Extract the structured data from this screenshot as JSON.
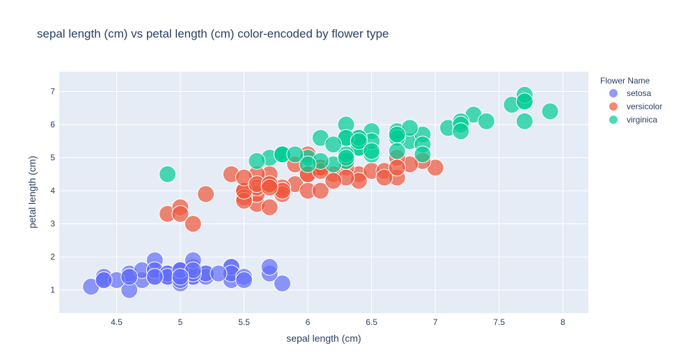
{
  "chart_data": {
    "type": "scatter",
    "title": "sepal length (cm) vs petal length (cm) color-encoded by flower type",
    "xlabel": "sepal length (cm)",
    "ylabel": "petal length (cm)",
    "xlim": [
      4.05,
      8.2
    ],
    "ylim": [
      0.3,
      7.6
    ],
    "xticks": [
      4.5,
      5,
      5.5,
      6,
      6.5,
      7,
      7.5,
      8
    ],
    "xtick_labels": [
      "4.5",
      "5",
      "5.5",
      "6",
      "6.5",
      "7",
      "7.5",
      "8"
    ],
    "yticks": [
      1,
      2,
      3,
      4,
      5,
      6,
      7
    ],
    "ytick_labels": [
      "1",
      "2",
      "3",
      "4",
      "5",
      "6",
      "7"
    ],
    "grid": true,
    "legend": {
      "title": "Flower Name",
      "placement": "right"
    },
    "series": [
      {
        "name": "setosa",
        "color": "#636efa",
        "x": [
          5.1,
          4.9,
          4.7,
          4.6,
          5.0,
          5.4,
          4.6,
          5.0,
          4.4,
          4.9,
          5.4,
          4.8,
          4.8,
          4.3,
          5.8,
          5.7,
          5.4,
          5.1,
          5.7,
          5.1,
          5.4,
          5.1,
          4.6,
          5.1,
          4.8,
          5.0,
          5.0,
          5.2,
          5.2,
          4.7,
          4.8,
          5.4,
          5.2,
          5.5,
          4.9,
          5.0,
          5.5,
          4.9,
          4.4,
          5.1,
          5.0,
          4.5,
          4.4,
          5.0,
          5.1,
          4.8,
          5.1,
          4.6,
          5.3,
          5.0
        ],
        "y": [
          1.4,
          1.4,
          1.3,
          1.5,
          1.4,
          1.7,
          1.4,
          1.5,
          1.4,
          1.5,
          1.5,
          1.6,
          1.4,
          1.1,
          1.2,
          1.5,
          1.3,
          1.4,
          1.7,
          1.5,
          1.7,
          1.5,
          1.0,
          1.7,
          1.9,
          1.6,
          1.6,
          1.5,
          1.4,
          1.6,
          1.6,
          1.5,
          1.5,
          1.4,
          1.5,
          1.2,
          1.3,
          1.4,
          1.3,
          1.5,
          1.3,
          1.3,
          1.3,
          1.6,
          1.9,
          1.4,
          1.6,
          1.4,
          1.5,
          1.4
        ]
      },
      {
        "name": "versicolor",
        "color": "#ef553b",
        "x": [
          7.0,
          6.4,
          6.9,
          5.5,
          6.5,
          5.7,
          6.3,
          4.9,
          6.6,
          5.2,
          5.0,
          5.9,
          6.0,
          6.1,
          5.6,
          6.7,
          5.6,
          5.8,
          6.2,
          5.6,
          5.9,
          6.1,
          6.3,
          6.1,
          6.4,
          6.6,
          6.8,
          6.7,
          6.0,
          5.7,
          5.5,
          5.5,
          5.8,
          6.0,
          5.4,
          6.0,
          6.7,
          6.3,
          5.6,
          5.5,
          5.5,
          6.1,
          5.8,
          5.0,
          5.6,
          5.7,
          5.7,
          6.2,
          5.1,
          5.7
        ],
        "y": [
          4.7,
          4.5,
          4.9,
          4.0,
          4.6,
          4.5,
          4.7,
          3.3,
          4.6,
          3.9,
          3.5,
          4.2,
          4.0,
          4.7,
          3.6,
          4.4,
          4.5,
          4.1,
          4.5,
          3.9,
          4.8,
          4.0,
          4.9,
          4.7,
          4.3,
          4.4,
          4.8,
          5.0,
          4.5,
          3.5,
          3.8,
          3.7,
          3.9,
          5.1,
          4.5,
          4.5,
          4.7,
          4.4,
          4.1,
          4.0,
          4.4,
          4.6,
          4.0,
          3.3,
          4.2,
          4.2,
          4.2,
          4.3,
          3.0,
          4.1
        ]
      },
      {
        "name": "virginica",
        "color": "#00cc96",
        "x": [
          6.3,
          5.8,
          7.1,
          6.3,
          6.5,
          7.6,
          4.9,
          7.3,
          6.7,
          7.2,
          6.5,
          6.4,
          6.8,
          5.7,
          5.8,
          6.4,
          6.5,
          7.7,
          7.7,
          6.0,
          6.9,
          5.6,
          7.7,
          6.3,
          6.7,
          7.2,
          6.2,
          6.1,
          6.4,
          7.2,
          7.4,
          7.9,
          6.4,
          6.3,
          6.1,
          7.7,
          6.3,
          6.4,
          6.0,
          6.9,
          6.7,
          6.9,
          5.8,
          6.8,
          6.7,
          6.7,
          6.3,
          6.5,
          6.2,
          5.9
        ],
        "y": [
          6.0,
          5.1,
          5.9,
          5.6,
          5.8,
          6.6,
          4.5,
          6.3,
          5.8,
          6.1,
          5.1,
          5.3,
          5.5,
          5.0,
          5.1,
          5.3,
          5.5,
          6.7,
          6.9,
          5.0,
          5.7,
          4.9,
          6.7,
          4.9,
          5.7,
          6.0,
          4.8,
          4.9,
          5.6,
          5.8,
          6.1,
          6.4,
          5.6,
          5.1,
          5.6,
          6.1,
          5.6,
          5.5,
          4.8,
          5.4,
          5.6,
          5.1,
          5.1,
          5.9,
          5.7,
          5.2,
          5.0,
          5.2,
          5.4,
          5.1
        ]
      }
    ]
  }
}
